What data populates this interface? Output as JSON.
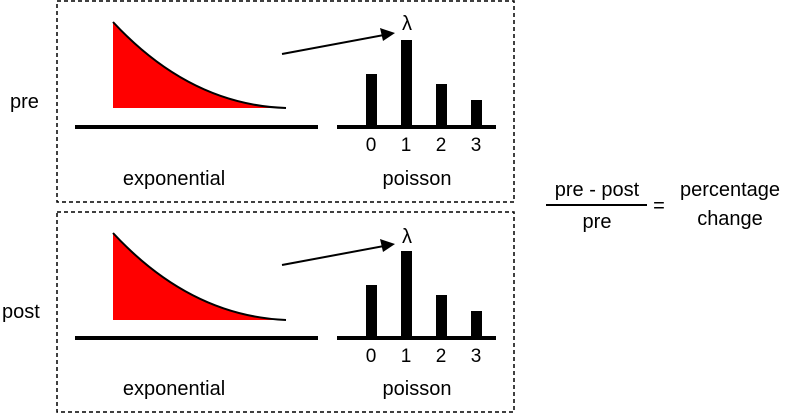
{
  "panels": [
    {
      "row_label": "pre",
      "left_caption": "exponential",
      "right_caption": "poisson",
      "lambda_symbol": "λ",
      "ticks": [
        "0",
        "1",
        "2",
        "3"
      ]
    },
    {
      "row_label": "post",
      "left_caption": "exponential",
      "right_caption": "poisson",
      "lambda_symbol": "λ",
      "ticks": [
        "0",
        "1",
        "2",
        "3"
      ]
    }
  ],
  "formula": {
    "numerator": "pre - post",
    "denominator": "pre",
    "equals": "=",
    "result_line1": "percentage",
    "result_line2": "change"
  },
  "colors": {
    "exponential_fill": "#ff0000",
    "bars": "#000000"
  }
}
